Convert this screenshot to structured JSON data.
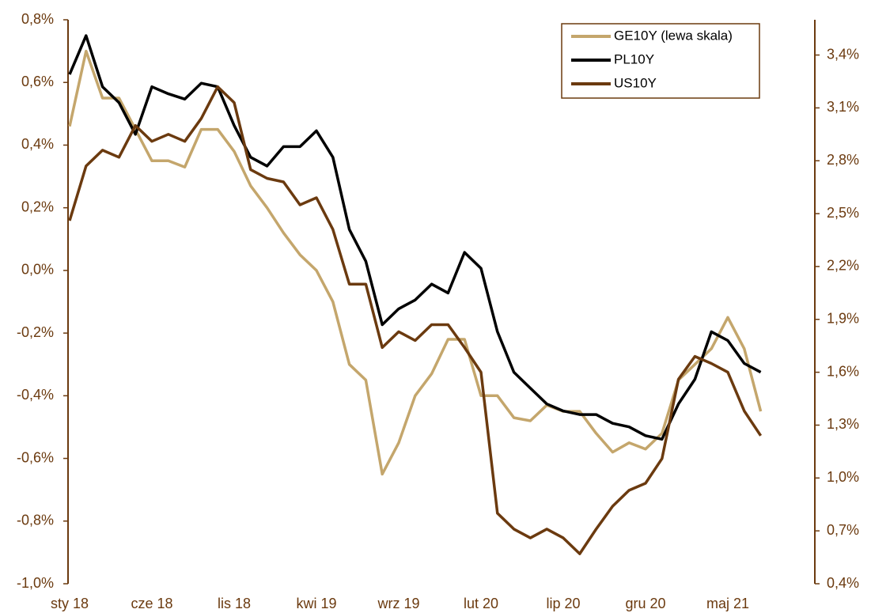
{
  "chart_data": {
    "type": "line",
    "categories": [
      "sty 18",
      null,
      null,
      null,
      null,
      "cze 18",
      null,
      null,
      null,
      null,
      "lis 18",
      null,
      null,
      null,
      null,
      "kwi 19",
      null,
      null,
      null,
      null,
      "wrz 19",
      null,
      null,
      null,
      null,
      "lut 20",
      null,
      null,
      null,
      null,
      "lip 20",
      null,
      null,
      null,
      null,
      "gru 20",
      null,
      null,
      null,
      null,
      "maj 21",
      null,
      null
    ],
    "series": [
      {
        "name": "GE10Y (lewa skala)",
        "color": "#c4a66c",
        "values": [
          0.46,
          0.7,
          0.55,
          0.55,
          0.45,
          0.35,
          0.35,
          0.33,
          0.45,
          0.45,
          0.38,
          0.27,
          0.2,
          0.12,
          0.05,
          0.0,
          -0.1,
          -0.3,
          -0.35,
          -0.65,
          -0.55,
          -0.4,
          -0.33,
          -0.22,
          -0.22,
          -0.4,
          -0.4,
          -0.47,
          -0.48,
          -0.43,
          -0.45,
          -0.45,
          -0.52,
          -0.58,
          -0.55,
          -0.57,
          -0.52,
          -0.35,
          -0.3,
          -0.25,
          -0.15,
          -0.25,
          -0.45
        ]
      },
      {
        "name": "PL10Y",
        "color": "#000000",
        "axis": "y2",
        "values": [
          3.29,
          3.51,
          3.22,
          3.13,
          2.95,
          3.22,
          3.18,
          3.15,
          3.24,
          3.22,
          3.0,
          2.82,
          2.77,
          2.88,
          2.88,
          2.97,
          2.82,
          2.41,
          2.23,
          1.87,
          1.96,
          2.01,
          2.1,
          2.05,
          2.28,
          2.19,
          1.83,
          1.6,
          1.51,
          1.42,
          1.38,
          1.36,
          1.36,
          1.31,
          1.29,
          1.24,
          1.22,
          1.42,
          1.56,
          1.83,
          1.78,
          1.65,
          1.6
        ]
      },
      {
        "name": "US10Y",
        "color": "#6b3a0f",
        "axis": "y2",
        "values": [
          2.46,
          2.77,
          2.86,
          2.82,
          3.0,
          2.91,
          2.95,
          2.91,
          3.04,
          3.22,
          3.13,
          2.75,
          2.7,
          2.68,
          2.55,
          2.59,
          2.41,
          2.1,
          2.1,
          1.74,
          1.83,
          1.78,
          1.87,
          1.87,
          1.74,
          1.6,
          0.8,
          0.71,
          0.66,
          0.71,
          0.66,
          0.57,
          0.71,
          0.84,
          0.93,
          0.97,
          1.11,
          1.56,
          1.69,
          1.65,
          1.6,
          1.38,
          1.24
        ]
      }
    ],
    "ylim": [
      -1.0,
      0.8
    ],
    "yticks": [
      {
        "value": -1.0,
        "label": "-1,0%"
      },
      {
        "value": -0.8,
        "label": "-0,8%"
      },
      {
        "value": -0.6,
        "label": "-0,6%"
      },
      {
        "value": -0.4,
        "label": "-0,4%"
      },
      {
        "value": -0.2,
        "label": "-0,2%"
      },
      {
        "value": 0.0,
        "label": "0,0%"
      },
      {
        "value": 0.2,
        "label": "0,2%"
      },
      {
        "value": 0.4,
        "label": "0,4%"
      },
      {
        "value": 0.6,
        "label": "0,6%"
      },
      {
        "value": 0.8,
        "label": "0,8%"
      }
    ],
    "y2lim": [
      0.4,
      3.6
    ],
    "y2ticks": [
      {
        "value": 0.4,
        "label": "0,4%"
      },
      {
        "value": 0.7,
        "label": "0,7%"
      },
      {
        "value": 1.0,
        "label": "1,0%"
      },
      {
        "value": 1.3,
        "label": "1,3%"
      },
      {
        "value": 1.6,
        "label": "1,6%"
      },
      {
        "value": 1.9,
        "label": "1,9%"
      },
      {
        "value": 2.2,
        "label": "2,2%"
      },
      {
        "value": 2.5,
        "label": "2,5%"
      },
      {
        "value": 2.8,
        "label": "2,8%"
      },
      {
        "value": 3.1,
        "label": "3,1%"
      },
      {
        "value": 3.4,
        "label": "3,4%"
      }
    ],
    "grid": false,
    "legend": "upper right"
  }
}
